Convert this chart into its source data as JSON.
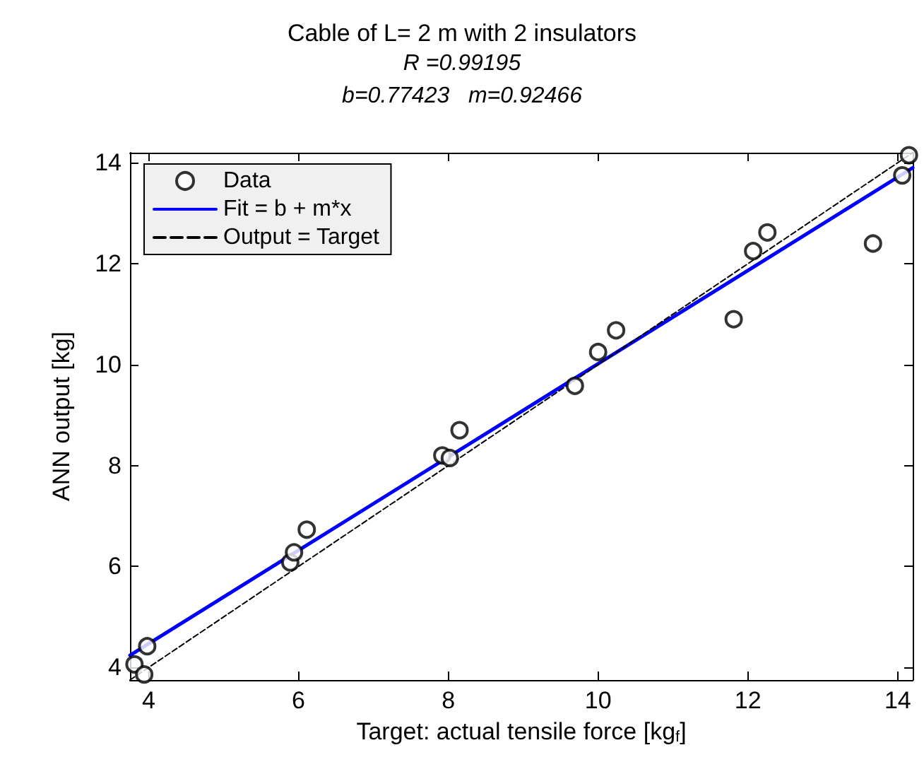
{
  "chart_data": {
    "type": "scatter",
    "title": "Cable of L= 2 m with 2 insulators",
    "subtitle": "R =0.99195",
    "annotations": [
      "b=0.77423   m=0.92466"
    ],
    "xlabel": "Target: actual tensile force [kg$_{f}$]",
    "ylabel": "ANN output [kg]",
    "xlim": [
      3.75,
      14.2
    ],
    "ylim": [
      3.75,
      14.2
    ],
    "xticks": [
      4,
      6,
      8,
      10,
      12,
      14
    ],
    "yticks": [
      4,
      6,
      8,
      10,
      12,
      14
    ],
    "grid": false,
    "legend": "top left",
    "series": [
      {
        "name": "Data",
        "marker": "circle",
        "color": "#000000",
        "x": [
          3.81,
          3.94,
          3.98,
          5.89,
          5.94,
          6.11,
          7.92,
          8.02,
          8.15,
          9.69,
          10.0,
          10.24,
          11.81,
          12.07,
          12.26,
          13.67,
          14.06,
          14.15
        ],
        "values": [
          4.06,
          3.86,
          4.42,
          6.08,
          6.28,
          6.73,
          8.2,
          8.15,
          8.7,
          9.58,
          10.25,
          10.68,
          10.9,
          12.25,
          12.62,
          12.4,
          13.75,
          14.15
        ]
      },
      {
        "name": "Fit = b + m*x",
        "type": "line",
        "marker": "none",
        "line_style": "solid",
        "color": "#0000ff",
        "x": [
          3.75,
          14.2
        ],
        "values": [
          4.24,
          13.9
        ]
      },
      {
        "name": "Output = Target",
        "type": "line",
        "marker": "none",
        "line_style": "dashed",
        "color": "#000000",
        "x": [
          3.75,
          14.2
        ],
        "values": [
          3.75,
          14.2
        ]
      }
    ]
  }
}
